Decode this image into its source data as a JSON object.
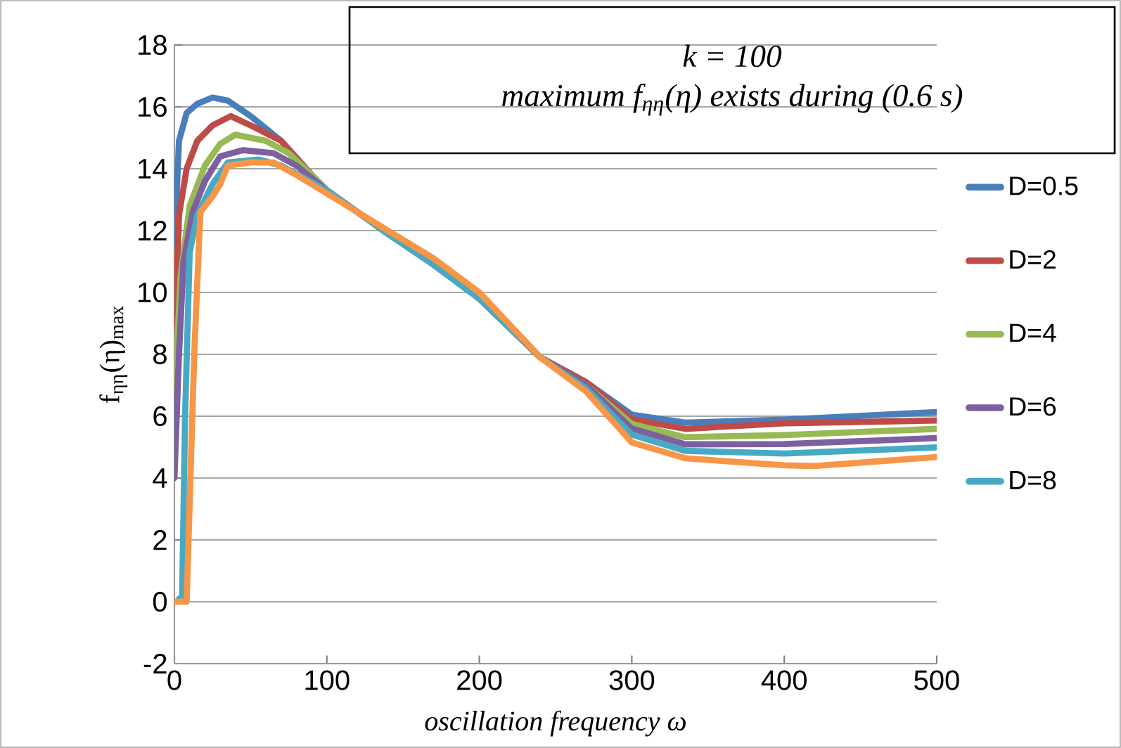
{
  "chart_data": {
    "type": "line",
    "xlabel": "oscillation frequency ω",
    "ylabel": "f$_{ηη}$(η)$_{max}$",
    "annotations": [
      "k = 100",
      "maximum f$_{ηη}$(η) exists during (0.6 s)"
    ],
    "xlim": [
      0,
      500
    ],
    "ylim": [
      -2,
      18
    ],
    "xticks": [
      0,
      100,
      200,
      300,
      400,
      500
    ],
    "yticks": [
      -2,
      0,
      2,
      4,
      6,
      8,
      10,
      12,
      14,
      16,
      18
    ],
    "grid": "y",
    "legend": "right",
    "series": [
      {
        "name": "D=0.5",
        "color": "#4a7ebb",
        "x": [
          0,
          3,
          8,
          15,
          25,
          35,
          50,
          70,
          90,
          100,
          140,
          170,
          200,
          240,
          270,
          300,
          335,
          400,
          500
        ],
        "values": [
          11.6,
          14.9,
          15.8,
          16.1,
          16.3,
          16.2,
          15.7,
          14.9,
          13.8,
          13.3,
          11.9,
          10.9,
          9.8,
          7.9,
          7.1,
          6.05,
          5.79,
          5.89,
          6.13
        ]
      },
      {
        "name": "D=2",
        "color": "#be4b48",
        "x": [
          0,
          3,
          8,
          15,
          25,
          37,
          50,
          70,
          90,
          100,
          140,
          170,
          200,
          240,
          270,
          300,
          335,
          400,
          500
        ],
        "values": [
          8,
          12.5,
          14,
          14.9,
          15.4,
          15.7,
          15.4,
          14.9,
          13.8,
          13.3,
          11.9,
          10.9,
          9.8,
          7.9,
          7.1,
          5.9,
          5.59,
          5.77,
          5.86
        ]
      },
      {
        "name": "D=4",
        "color": "#98b954",
        "x": [
          0,
          4,
          10,
          20,
          30,
          40,
          60,
          75,
          90,
          100,
          140,
          170,
          200,
          240,
          270,
          300,
          335,
          400,
          500
        ],
        "values": [
          6.5,
          10.5,
          12.8,
          14.1,
          14.8,
          15.1,
          14.9,
          14.5,
          13.8,
          13.3,
          11.9,
          10.9,
          9.8,
          7.9,
          7.0,
          5.75,
          5.32,
          5.39,
          5.59
        ]
      },
      {
        "name": "D=6",
        "color": "#7d60a0",
        "x": [
          0,
          3,
          6,
          12,
          20,
          30,
          45,
          65,
          80,
          100,
          140,
          170,
          200,
          240,
          270,
          300,
          335,
          400,
          500
        ],
        "values": [
          4,
          8,
          11,
          12.6,
          13.6,
          14.4,
          14.6,
          14.5,
          14.1,
          13.3,
          11.9,
          10.9,
          9.8,
          7.9,
          7.0,
          5.6,
          5.09,
          5.1,
          5.29
        ]
      },
      {
        "name": "D=8",
        "color": "#46aac5",
        "x": [
          3,
          5,
          7,
          10,
          15,
          25,
          35,
          55,
          70,
          85,
          100,
          140,
          170,
          200,
          240,
          270,
          300,
          335,
          400,
          500
        ],
        "values": [
          0.1,
          0,
          6,
          11.3,
          12.5,
          13.5,
          14.2,
          14.3,
          14.1,
          13.7,
          13.3,
          11.9,
          10.9,
          9.8,
          7.9,
          6.9,
          5.4,
          4.88,
          4.79,
          4.99
        ]
      },
      {
        "color": "#f79646",
        "x": [
          0,
          8,
          13,
          17,
          25,
          30,
          35,
          50,
          65,
          80,
          100,
          140,
          170,
          200,
          240,
          270,
          300,
          335,
          400,
          420,
          500
        ],
        "values": [
          0,
          0,
          8,
          12.6,
          13.1,
          13.5,
          14.1,
          14.2,
          14.2,
          13.8,
          13.2,
          12.0,
          11.1,
          10.0,
          7.9,
          6.8,
          5.15,
          4.64,
          4.41,
          4.39,
          4.68
        ]
      }
    ]
  }
}
